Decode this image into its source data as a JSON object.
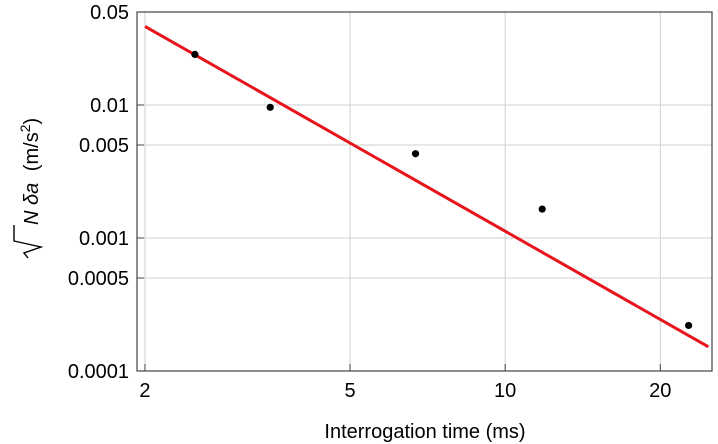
{
  "chart_data": {
    "type": "scatter",
    "title": "",
    "xlabel": "Interrogation time (ms)",
    "ylabel": {
      "prefix": "N δa",
      "unit": "(m/s",
      "sup": "2",
      "close": ")"
    },
    "x_scale": "log",
    "y_scale": "log",
    "xlim": [
      1.93,
      25.2
    ],
    "ylim": [
      0.0001,
      0.05
    ],
    "x_ticks": [
      2,
      5,
      10,
      20
    ],
    "x_tick_labels": [
      "2",
      "5",
      "10",
      "20"
    ],
    "y_ticks": [
      0.0001,
      0.0005,
      0.001,
      0.005,
      0.01,
      0.05
    ],
    "y_tick_labels": [
      "0.0001",
      "0.0005",
      "0.001",
      "0.005",
      "0.01",
      "0.05"
    ],
    "grid": true,
    "series": [
      {
        "kind": "points",
        "color": "#000000",
        "x": [
          2.5,
          3.5,
          6.7,
          11.8,
          22.7
        ],
        "y": [
          0.024,
          0.0096,
          0.0043,
          0.00165,
          0.00022
        ]
      },
      {
        "kind": "fit-line",
        "color": "#e8141b",
        "x": [
          2.0,
          24.8
        ],
        "y": [
          0.039,
          0.000152
        ]
      }
    ]
  }
}
